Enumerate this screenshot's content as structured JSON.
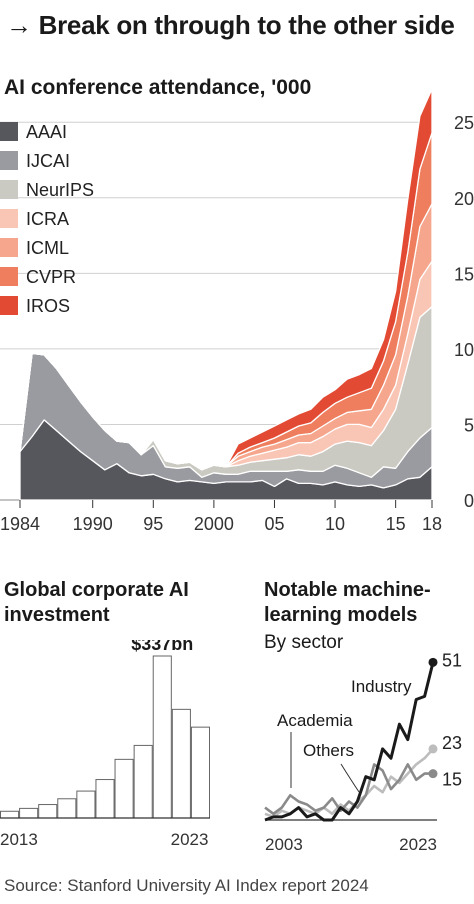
{
  "headline": "→ Break on through to the other side",
  "source": "Source: Stanford University AI Index report 2024",
  "chart_data": [
    {
      "type": "area",
      "stacked": true,
      "title": "AI conference attendance, '000",
      "ylim": [
        0,
        27
      ],
      "yticks": [
        0,
        5,
        10,
        15,
        20,
        25
      ],
      "ytick_labels": [
        "0",
        "5",
        "10",
        "15",
        "20",
        "25"
      ],
      "xlim": [
        1984,
        2018
      ],
      "xticks": [
        1984,
        1990,
        1995,
        2000,
        2005,
        2010,
        2015,
        2018
      ],
      "xtick_labels": [
        "1984",
        "1990",
        "95",
        "2000",
        "05",
        "10",
        "15",
        "18"
      ],
      "legend_position": "top-left",
      "x": [
        1984,
        1985,
        1986,
        1987,
        1988,
        1989,
        1990,
        1991,
        1992,
        1993,
        1994,
        1995,
        1996,
        1997,
        1998,
        1999,
        2000,
        2001,
        2002,
        2003,
        2004,
        2005,
        2006,
        2007,
        2008,
        2009,
        2010,
        2011,
        2012,
        2013,
        2014,
        2015,
        2016,
        2017,
        2018
      ],
      "series": [
        {
          "name": "AAAI",
          "color": "#56565d",
          "values": [
            3.2,
            4.2,
            5.3,
            4.6,
            3.9,
            3.2,
            2.6,
            2.0,
            2.4,
            1.8,
            1.6,
            1.7,
            1.4,
            1.2,
            1.3,
            1.2,
            1.1,
            1.2,
            1.2,
            1.2,
            1.3,
            0.9,
            1.4,
            1.1,
            1.1,
            1.0,
            1.2,
            1.0,
            0.9,
            1.0,
            0.8,
            1.0,
            1.4,
            1.5,
            2.2
          ]
        },
        {
          "name": "IJCAI",
          "color": "#9a9ba0",
          "values": [
            0,
            5.5,
            4.3,
            4.1,
            3.7,
            3.3,
            2.9,
            2.6,
            1.5,
            2.0,
            1.4,
            1.9,
            0.8,
            0.9,
            0.9,
            0.3,
            0.7,
            0.5,
            0.5,
            0.7,
            0.6,
            1.0,
            0.5,
            0.9,
            0.8,
            0.9,
            1.1,
            1.1,
            0.9,
            0.5,
            1.4,
            1.1,
            1.8,
            2.6,
            2.6
          ]
        },
        {
          "name": "NeurIPS",
          "color": "#cbcac2",
          "values": [
            0,
            0,
            0,
            0,
            0,
            0,
            0,
            0,
            0,
            0,
            0,
            0.4,
            0.4,
            0.3,
            0.3,
            0.5,
            0.5,
            0.5,
            0.6,
            0.6,
            0.7,
            0.8,
            0.9,
            1.0,
            1.0,
            1.3,
            1.4,
            1.8,
            2.0,
            2.1,
            2.4,
            3.9,
            5.8,
            8.0,
            8.0
          ]
        },
        {
          "name": "ICRA",
          "color": "#f9c6b6",
          "values": [
            0,
            0,
            0,
            0,
            0,
            0,
            0,
            0,
            0,
            0,
            0,
            0,
            0,
            0,
            0,
            0,
            0,
            0,
            0.3,
            0.4,
            0.5,
            0.6,
            0.7,
            0.8,
            0.9,
            1.0,
            1.0,
            1.1,
            1.2,
            1.2,
            1.4,
            1.6,
            2.0,
            2.5,
            3.0
          ]
        },
        {
          "name": "ICML",
          "color": "#f6a68c",
          "values": [
            0,
            0,
            0,
            0,
            0,
            0,
            0,
            0,
            0,
            0,
            0,
            0,
            0,
            0,
            0,
            0,
            0,
            0,
            0.3,
            0.3,
            0.4,
            0.4,
            0.5,
            0.5,
            0.6,
            0.7,
            0.7,
            0.8,
            0.9,
            1.2,
            1.6,
            2.0,
            2.5,
            3.5,
            3.8
          ]
        },
        {
          "name": "CVPR",
          "color": "#ee7e5e",
          "values": [
            0,
            0,
            0,
            0,
            0,
            0,
            0,
            0,
            0,
            0,
            0,
            0,
            0,
            0,
            0,
            0,
            0,
            0,
            0.2,
            0.3,
            0.3,
            0.4,
            0.5,
            0.6,
            0.7,
            0.9,
            1.0,
            1.0,
            1.2,
            1.4,
            1.6,
            2.2,
            2.9,
            3.8,
            4.7
          ]
        },
        {
          "name": "IROS",
          "color": "#e34a33",
          "values": [
            0,
            0,
            0,
            0,
            0,
            0,
            0,
            0,
            0,
            0,
            0,
            0,
            0,
            0,
            0,
            0,
            0,
            0,
            0.6,
            0.6,
            0.7,
            0.8,
            0.8,
            0.8,
            0.9,
            1.0,
            0.9,
            1.2,
            1.2,
            1.3,
            1.4,
            2.0,
            3.5,
            3.5,
            2.9
          ]
        }
      ]
    },
    {
      "type": "bar",
      "title": "Global corporate AI investment",
      "categories": [
        "2013",
        "2014",
        "2015",
        "2016",
        "2017",
        "2018",
        "2019",
        "2020",
        "2021",
        "2022",
        "2023"
      ],
      "values": [
        14,
        20,
        28,
        40,
        56,
        80,
        122,
        151,
        337,
        226,
        189
      ],
      "xtick_labels": [
        "2013",
        "2023"
      ],
      "annotation": {
        "label": "$337bn",
        "category": "2021"
      }
    },
    {
      "type": "line",
      "title": "Notable machine-learning models",
      "subtitle": "By sector",
      "x": [
        2003,
        2004,
        2005,
        2006,
        2007,
        2008,
        2009,
        2010,
        2011,
        2012,
        2013,
        2014,
        2015,
        2016,
        2017,
        2018,
        2019,
        2020,
        2021,
        2022,
        2023
      ],
      "xtick_labels": [
        "2003",
        "2023"
      ],
      "ylim": [
        0,
        55
      ],
      "series": [
        {
          "name": "Industry",
          "color": "#1a1a1a",
          "end_label": "51",
          "values": [
            0,
            1,
            1,
            2,
            4,
            1,
            2,
            0,
            0,
            4,
            2,
            6,
            14,
            13,
            23,
            20,
            31,
            26,
            39,
            40,
            51
          ]
        },
        {
          "name": "Academia",
          "color": "#8a8a8a",
          "end_label": "15",
          "values": [
            4,
            2,
            4,
            8,
            6,
            5,
            3,
            4,
            7,
            3,
            6,
            4,
            8,
            18,
            16,
            10,
            13,
            18,
            13,
            15,
            15
          ]
        },
        {
          "name": "Others",
          "color": "#bdbdbd",
          "end_label": "23",
          "values": [
            2,
            1,
            3,
            2,
            4,
            3,
            2,
            4,
            2,
            5,
            3,
            6,
            8,
            11,
            9,
            14,
            12,
            15,
            18,
            20,
            23
          ]
        }
      ]
    }
  ]
}
